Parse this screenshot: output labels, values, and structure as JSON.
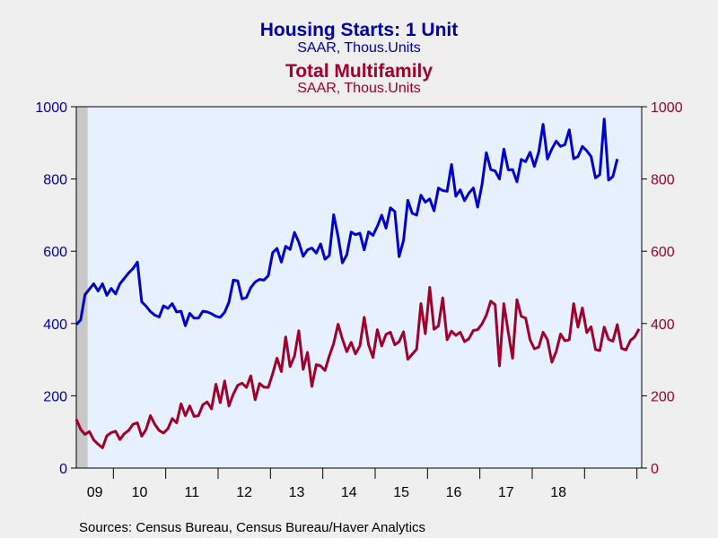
{
  "chart_data": {
    "type": "line",
    "titles": [
      {
        "title": "Housing Starts: 1 Unit",
        "subtitle": "SAAR, Thous.Units",
        "color": "#0000aa"
      },
      {
        "title": "Total Multifamily",
        "subtitle": "SAAR, Thous.Units",
        "color": "#a0002a"
      }
    ],
    "y_left": {
      "range": [
        0,
        1000
      ],
      "ticks": [
        "0",
        "200",
        "400",
        "600",
        "800",
        "1000"
      ],
      "color": "#0000aa"
    },
    "y_right": {
      "range": [
        0,
        1000
      ],
      "ticks": [
        "0",
        "200",
        "400",
        "600",
        "800",
        "1000"
      ],
      "color": "#a0002a"
    },
    "x_ticks": [
      "09",
      "10",
      "11",
      "12",
      "13",
      "14",
      "15",
      "16",
      "17",
      "18"
    ],
    "x_start": "2009-04",
    "recession_shading": {
      "from": "2009-04",
      "to": "2009-06",
      "color": "#c8c8c8"
    },
    "plot_background": "#e6f0ff",
    "series": [
      {
        "color": "#0000cc",
        "axis": "left",
        "values": [
          397,
          410,
          480,
          495,
          510,
          490,
          510,
          478,
          497,
          482,
          510,
          525,
          540,
          552,
          570,
          460,
          448,
          433,
          423,
          418,
          449,
          442,
          455,
          432,
          434,
          394,
          428,
          415,
          415,
          434,
          432,
          427,
          420,
          417,
          431,
          459,
          520,
          518,
          468,
          472,
          499,
          515,
          522,
          520,
          532,
          596,
          608,
          570,
          614,
          605,
          652,
          625,
          586,
          604,
          609,
          595,
          620,
          578,
          588,
          701,
          641,
          568,
          590,
          653,
          646,
          650,
          604,
          654,
          644,
          669,
          700,
          664,
          720,
          710,
          585,
          630,
          741,
          705,
          700,
          755,
          736,
          745,
          712,
          775,
          768,
          766,
          840,
          752,
          770,
          740,
          761,
          775,
          722,
          785,
          873,
          826,
          822,
          800,
          883,
          825,
          826,
          792,
          854,
          848,
          874,
          835,
          875,
          951,
          855,
          883,
          905,
          890,
          895,
          936,
          856,
          862,
          890,
          878,
          862,
          803,
          812,
          966,
          797,
          807,
          855
        ]
      },
      {
        "color": "#a0002a",
        "axis": "right",
        "values": [
          135,
          107,
          93,
          101,
          78,
          66,
          56,
          89,
          98,
          102,
          79,
          95,
          104,
          121,
          125,
          88,
          107,
          145,
          121,
          104,
          97,
          109,
          137,
          125,
          178,
          145,
          172,
          143,
          145,
          175,
          183,
          164,
          232,
          181,
          241,
          172,
          205,
          229,
          235,
          223,
          255,
          189,
          234,
          224,
          223,
          261,
          304,
          267,
          363,
          281,
          310,
          380,
          273,
          320,
          226,
          286,
          283,
          270,
          310,
          345,
          398,
          357,
          322,
          348,
          316,
          338,
          417,
          341,
          306,
          383,
          338,
          370,
          376,
          341,
          350,
          377,
          301,
          315,
          329,
          455,
          372,
          500,
          384,
          393,
          471,
          355,
          379,
          367,
          376,
          350,
          358,
          381,
          383,
          399,
          423,
          462,
          452,
          283,
          455,
          376,
          304,
          466,
          420,
          415,
          355,
          330,
          335,
          376,
          355,
          293,
          322,
          371,
          352,
          355,
          455,
          390,
          443,
          375,
          391,
          328,
          325,
          390,
          356,
          351,
          397,
          331,
          327,
          353,
          363,
          385
        ]
      }
    ],
    "source": "Sources:  Census Bureau, Census Bureau/Haver Analytics"
  }
}
